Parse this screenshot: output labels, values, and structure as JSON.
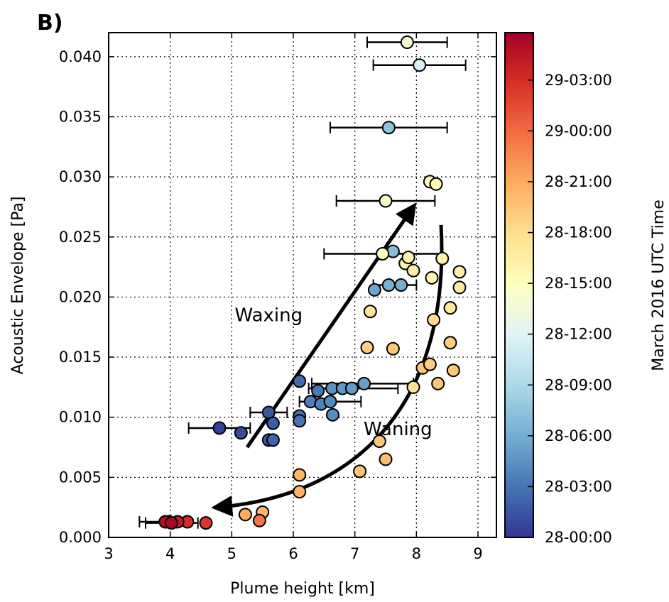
{
  "panel_label": "B)",
  "chart_data": {
    "type": "scatter",
    "xlabel": "Plume height [km]",
    "ylabel": "Acoustic Envelope [Pa]",
    "xlim": [
      3,
      9.3
    ],
    "ylim": [
      0,
      0.042
    ],
    "x_ticks": [
      "3",
      "4",
      "5",
      "6",
      "7",
      "8",
      "9"
    ],
    "y_ticks": [
      "0.000",
      "0.005",
      "0.010",
      "0.015",
      "0.020",
      "0.025",
      "0.030",
      "0.035",
      "0.040"
    ],
    "grid": true,
    "colorbar": {
      "label": "March 2016 UTC Time",
      "ticks": [
        "28-00:00",
        "28-03:00",
        "28-06:00",
        "28-09:00",
        "28-12:00",
        "28-15:00",
        "28-18:00",
        "28-21:00",
        "29-00:00",
        "29-03:00"
      ],
      "tick_hours": [
        0,
        3,
        6,
        9,
        12,
        15,
        18,
        21,
        24,
        27
      ],
      "range_hours": [
        0,
        29.8
      ],
      "colormap": [
        "#313695",
        "#4575b4",
        "#74add1",
        "#abd9e9",
        "#e0f3f8",
        "#ffffbf",
        "#fee090",
        "#fdae61",
        "#f46d43",
        "#d73027",
        "#a50026"
      ]
    },
    "annotations": [
      {
        "text": "Waxing",
        "x": 5.6,
        "y": 0.018
      },
      {
        "text": "Waning",
        "x": 7.7,
        "y": 0.0085
      }
    ],
    "arrows": [
      {
        "name": "waxing",
        "from": [
          5.25,
          0.0075
        ],
        "to": [
          7.95,
          0.0275
        ]
      },
      {
        "name": "waning",
        "from": [
          8.4,
          0.026
        ],
        "to": [
          4.75,
          0.0025
        ]
      }
    ],
    "points": [
      {
        "x": 4.8,
        "y": 0.0091,
        "t": 0.5,
        "xerr": [
          4.3,
          5.3
        ]
      },
      {
        "x": 5.15,
        "y": 0.0087,
        "t": 1.0
      },
      {
        "x": 5.6,
        "y": 0.0104,
        "t": 1.5,
        "xerr": [
          5.3,
          5.9
        ]
      },
      {
        "x": 5.67,
        "y": 0.0095,
        "t": 1.8
      },
      {
        "x": 5.6,
        "y": 0.0081,
        "t": 2.0
      },
      {
        "x": 5.67,
        "y": 0.0081,
        "t": 2.2
      },
      {
        "x": 6.1,
        "y": 0.013,
        "t": 2.5
      },
      {
        "x": 6.1,
        "y": 0.0101,
        "t": 2.8
      },
      {
        "x": 6.1,
        "y": 0.0097,
        "t": 3.0
      },
      {
        "x": 6.4,
        "y": 0.0122,
        "t": 3.2
      },
      {
        "x": 6.28,
        "y": 0.0113,
        "t": 3.5
      },
      {
        "x": 6.45,
        "y": 0.0111,
        "t": 3.7
      },
      {
        "x": 6.6,
        "y": 0.0113,
        "t": 4.0,
        "xerr": [
          6.1,
          7.1
        ]
      },
      {
        "x": 6.64,
        "y": 0.0102,
        "t": 4.2
      },
      {
        "x": 6.63,
        "y": 0.0124,
        "t": 4.5
      },
      {
        "x": 6.8,
        "y": 0.0124,
        "t": 4.8,
        "xerr": [
          6.25,
          7.7
        ]
      },
      {
        "x": 6.95,
        "y": 0.0124,
        "t": 5.0
      },
      {
        "x": 7.15,
        "y": 0.0128,
        "t": 5.2,
        "xerr": [
          6.3,
          7.95
        ]
      },
      {
        "x": 7.32,
        "y": 0.0206,
        "t": 5.5
      },
      {
        "x": 7.55,
        "y": 0.021,
        "t": 6.2
      },
      {
        "x": 7.75,
        "y": 0.021,
        "t": 6.0,
        "xerr": [
          7.3,
          8.0
        ]
      },
      {
        "x": 7.62,
        "y": 0.0238,
        "t": 7.0
      },
      {
        "x": 7.55,
        "y": 0.0341,
        "t": 7.5,
        "xerr": [
          6.6,
          8.5
        ]
      },
      {
        "x": 8.05,
        "y": 0.0393,
        "t": 11.5,
        "xerr": [
          7.3,
          8.8
        ]
      },
      {
        "x": 7.85,
        "y": 0.0412,
        "t": 14.0,
        "xerr": [
          7.2,
          8.5
        ]
      },
      {
        "x": 7.5,
        "y": 0.028,
        "t": 14.5,
        "xerr": [
          6.7,
          8.3
        ]
      },
      {
        "x": 7.45,
        "y": 0.0236,
        "t": 15.0,
        "xerr": [
          6.5,
          8.4
        ]
      },
      {
        "x": 8.22,
        "y": 0.0296,
        "t": 15.5
      },
      {
        "x": 8.32,
        "y": 0.0294,
        "t": 15.5
      },
      {
        "x": 7.82,
        "y": 0.0228,
        "t": 16.0
      },
      {
        "x": 7.87,
        "y": 0.0233,
        "t": 16.0
      },
      {
        "x": 7.95,
        "y": 0.0222,
        "t": 16.5
      },
      {
        "x": 8.25,
        "y": 0.0216,
        "t": 16.0
      },
      {
        "x": 8.42,
        "y": 0.0232,
        "t": 16.0
      },
      {
        "x": 8.7,
        "y": 0.0221,
        "t": 16.5
      },
      {
        "x": 8.7,
        "y": 0.0208,
        "t": 17.0
      },
      {
        "x": 7.25,
        "y": 0.0188,
        "t": 17.5
      },
      {
        "x": 8.55,
        "y": 0.0191,
        "t": 17.0
      },
      {
        "x": 8.28,
        "y": 0.0181,
        "t": 18.0
      },
      {
        "x": 7.95,
        "y": 0.0125,
        "t": 17.5
      },
      {
        "x": 7.2,
        "y": 0.0158,
        "t": 19.0
      },
      {
        "x": 7.62,
        "y": 0.0157,
        "t": 19.5
      },
      {
        "x": 8.55,
        "y": 0.0162,
        "t": 19.0
      },
      {
        "x": 8.1,
        "y": 0.0141,
        "t": 19.5
      },
      {
        "x": 8.22,
        "y": 0.0144,
        "t": 19.0
      },
      {
        "x": 8.6,
        "y": 0.0139,
        "t": 19.5
      },
      {
        "x": 8.35,
        "y": 0.0128,
        "t": 19.5
      },
      {
        "x": 7.4,
        "y": 0.008,
        "t": 19.5
      },
      {
        "x": 7.08,
        "y": 0.0055,
        "t": 19.5
      },
      {
        "x": 7.5,
        "y": 0.0065,
        "t": 20.0
      },
      {
        "x": 6.1,
        "y": 0.0052,
        "t": 20.5
      },
      {
        "x": 6.1,
        "y": 0.0038,
        "t": 20.5
      },
      {
        "x": 5.5,
        "y": 0.0021,
        "t": 20.5
      },
      {
        "x": 5.22,
        "y": 0.0019,
        "t": 21.0
      },
      {
        "x": 5.45,
        "y": 0.0014,
        "t": 23.5
      },
      {
        "x": 4.58,
        "y": 0.0012,
        "t": 26.5
      },
      {
        "x": 4.28,
        "y": 0.0013,
        "t": 27.0
      },
      {
        "x": 4.12,
        "y": 0.0013,
        "t": 28.0
      },
      {
        "x": 3.98,
        "y": 0.0013,
        "t": 28.5
      },
      {
        "x": 3.92,
        "y": 0.0013,
        "t": 29.0,
        "xerr": [
          3.5,
          4.3
        ]
      },
      {
        "x": 4.02,
        "y": 0.0012,
        "t": 29.5,
        "xerr": [
          3.6,
          4.45
        ]
      }
    ]
  }
}
